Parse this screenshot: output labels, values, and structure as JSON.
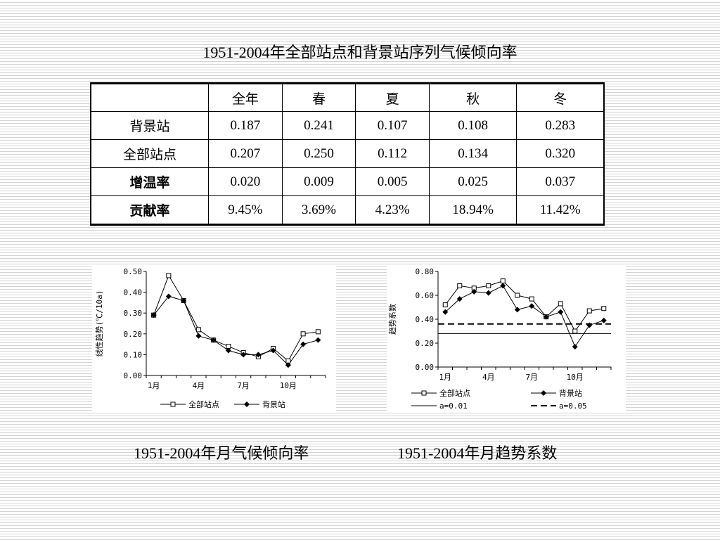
{
  "title": "1951-2004年全部站点和背景站序列气候倾向率",
  "table": {
    "headers": [
      "",
      "全年",
      "春",
      "夏",
      "秋",
      "冬"
    ],
    "rows": [
      {
        "label": "背景站",
        "values": [
          "0.187",
          "0.241",
          "0.107",
          "0.108",
          "0.283"
        ]
      },
      {
        "label": "全部站点",
        "values": [
          "0.207",
          "0.250",
          "0.112",
          "0.134",
          "0.320"
        ]
      },
      {
        "label": "增温率",
        "values": [
          "0.020",
          "0.009",
          "0.005",
          "0.025",
          "0.037"
        ]
      },
      {
        "label": "贡献率",
        "values": [
          "9.45%",
          "3.69%",
          "4.23%",
          "18.94%",
          "11.42%"
        ]
      }
    ]
  },
  "captions": {
    "left": "1951-2004年月气候倾向率",
    "right": "1951-2004年月趋势系数"
  },
  "chart_data": [
    {
      "type": "line",
      "title": "",
      "xlabel": "",
      "ylabel": "线性趋势(℃/10a)",
      "x": [
        1,
        2,
        3,
        4,
        5,
        6,
        7,
        8,
        9,
        10,
        11,
        12
      ],
      "x_tick_labels": [
        {
          "x": 1,
          "label": "1月"
        },
        {
          "x": 4,
          "label": "4月"
        },
        {
          "x": 7,
          "label": "7月"
        },
        {
          "x": 10,
          "label": "10月"
        }
      ],
      "y_ticks": [
        "0.00",
        "0.10",
        "0.20",
        "0.30",
        "0.40",
        "0.50"
      ],
      "ylim": [
        0,
        0.5
      ],
      "grid": false,
      "legend": "bottom",
      "series": [
        {
          "name": "全部站点",
          "marker": "open-square",
          "values": [
            0.29,
            0.48,
            0.36,
            0.22,
            0.17,
            0.14,
            0.11,
            0.09,
            0.13,
            0.07,
            0.2,
            0.21
          ]
        },
        {
          "name": "背景站",
          "marker": "filled-diamond",
          "values": [
            0.29,
            0.38,
            0.36,
            0.19,
            0.17,
            0.12,
            0.1,
            0.1,
            0.12,
            0.05,
            0.15,
            0.17
          ]
        }
      ]
    },
    {
      "type": "line",
      "title": "",
      "xlabel": "",
      "ylabel": "趋势系数",
      "x": [
        1,
        2,
        3,
        4,
        5,
        6,
        7,
        8,
        9,
        10,
        11,
        12
      ],
      "x_tick_labels": [
        {
          "x": 1,
          "label": "1月"
        },
        {
          "x": 4,
          "label": "4月"
        },
        {
          "x": 7,
          "label": "7月"
        },
        {
          "x": 10,
          "label": "10月"
        }
      ],
      "y_ticks": [
        "0.00",
        "0.20",
        "0.40",
        "0.60",
        "0.80"
      ],
      "ylim": [
        0,
        0.8
      ],
      "grid": false,
      "legend": "bottom",
      "series": [
        {
          "name": "全部站点",
          "marker": "open-square",
          "values": [
            0.52,
            0.68,
            0.66,
            0.68,
            0.72,
            0.6,
            0.57,
            0.42,
            0.53,
            0.3,
            0.47,
            0.49
          ]
        },
        {
          "name": "背景站",
          "marker": "filled-diamond",
          "values": [
            0.46,
            0.57,
            0.63,
            0.62,
            0.68,
            0.48,
            0.51,
            0.42,
            0.46,
            0.17,
            0.35,
            0.39
          ]
        }
      ],
      "reference_lines": [
        {
          "name": "a=0.01",
          "style": "solid",
          "value": 0.28
        },
        {
          "name": "a=0.05",
          "style": "dashed",
          "value": 0.36
        }
      ]
    }
  ]
}
